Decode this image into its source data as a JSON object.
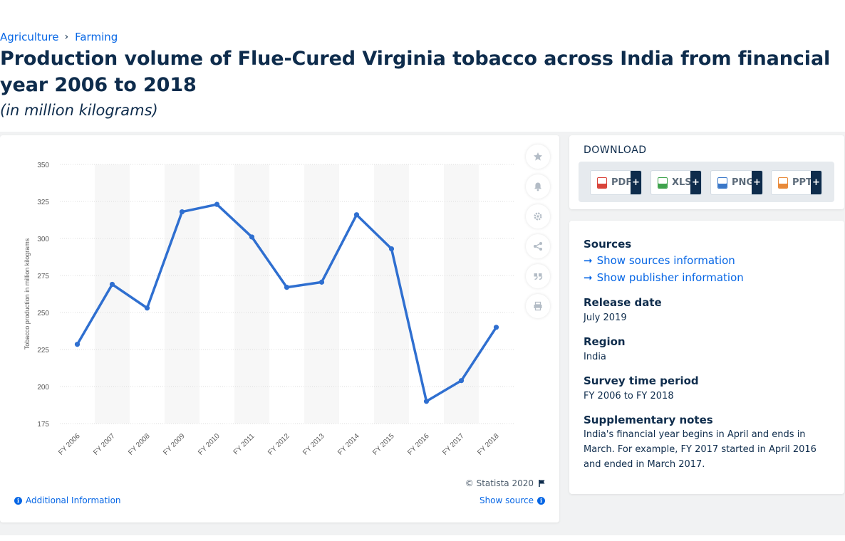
{
  "breadcrumb": {
    "items": [
      "Agriculture",
      "Farming"
    ],
    "separator": "›"
  },
  "title": "Production volume of Flue-Cured Virginia tobacco across India from financial year 2006 to 2018",
  "subtitle": "(in million kilograms)",
  "chart_data": {
    "type": "line",
    "categories": [
      "FY 2006",
      "FY 2007",
      "FY 2008",
      "FY 2009",
      "FY 2010",
      "FY 2011",
      "FY 2012",
      "FY 2013",
      "FY 2014",
      "FY 2015",
      "FY 2016",
      "FY 2017",
      "FY 2018"
    ],
    "values": [
      228.5,
      269,
      253,
      318,
      323,
      301,
      267,
      270.5,
      316,
      293,
      190,
      204,
      240
    ],
    "ylabel": "Tobacco production in million kilograms",
    "ylim": [
      175,
      350
    ],
    "yticks": [
      350,
      325,
      300,
      275,
      250,
      225,
      200,
      175
    ],
    "grid": true,
    "color": "#2f6fd0"
  },
  "chart_tools": {
    "icons": [
      "star-icon",
      "bell-icon",
      "gear-icon",
      "share-icon",
      "quote-icon",
      "print-icon"
    ]
  },
  "chart_footer": {
    "copyright": "© Statista 2020",
    "additional_info": "Additional Information",
    "show_source": "Show source"
  },
  "download": {
    "title": "DOWNLOAD",
    "buttons": [
      {
        "label": "PDF",
        "color": "#d9443b"
      },
      {
        "label": "XLS",
        "color": "#3fa34d"
      },
      {
        "label": "PNG",
        "color": "#3a78c9"
      },
      {
        "label": "PPT",
        "color": "#e88a3a"
      }
    ],
    "plus": "+"
  },
  "info": {
    "sources_heading": "Sources",
    "show_sources": "Show sources information",
    "show_publisher": "Show publisher information",
    "release_heading": "Release date",
    "release_value": "July 2019",
    "region_heading": "Region",
    "region_value": "India",
    "survey_heading": "Survey time period",
    "survey_value": "FY 2006 to FY 2018",
    "notes_heading": "Supplementary notes",
    "notes_value": "India's financial year begins in April and ends in March. For example, FY 2017 started in April 2016 and ended in March 2017."
  }
}
